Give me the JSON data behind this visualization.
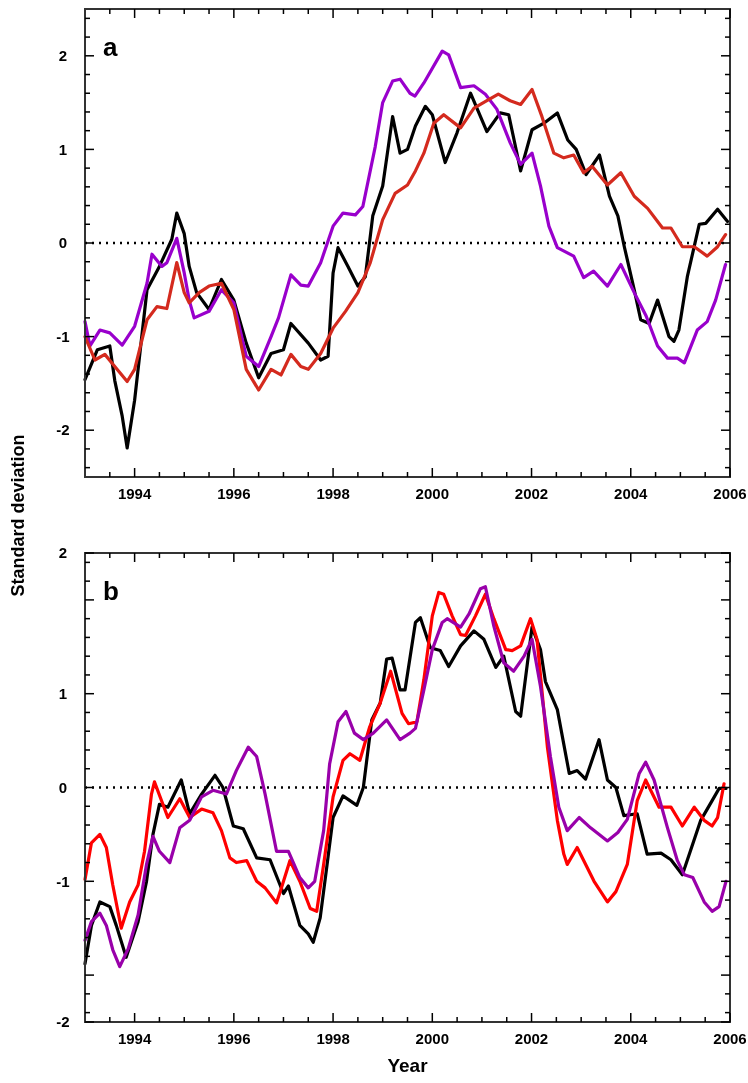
{
  "chart_data": [
    {
      "type": "line",
      "title": "a",
      "ylabel": "Standard deviation",
      "xlim": [
        1993,
        2006
      ],
      "ylim": [
        -2.5,
        2.5
      ],
      "xticks": [
        {
          "value": 1993.5,
          "label": null
        },
        1994,
        {
          "value": 1994.5,
          "label": null
        },
        {
          "value": 1995,
          "label": null
        },
        {
          "value": 1995.5,
          "label": null
        },
        1996,
        {
          "value": 1996.5,
          "label": null
        },
        {
          "value": 1997,
          "label": null
        },
        {
          "value": 1997.5,
          "label": null
        },
        1998,
        {
          "value": 1998.5,
          "label": null
        },
        {
          "value": 1999,
          "label": null
        },
        {
          "value": 1999.5,
          "label": null
        },
        2000,
        {
          "value": 2000.5,
          "label": null
        },
        {
          "value": 2001,
          "label": null
        },
        {
          "value": 2001.5,
          "label": null
        },
        2002,
        {
          "value": 2002.5,
          "label": null
        },
        {
          "value": 2003,
          "label": null
        },
        {
          "value": 2003.5,
          "label": null
        },
        2004,
        {
          "value": 2004.5,
          "label": null
        },
        {
          "value": 2005,
          "label": null
        },
        {
          "value": 2005.5,
          "label": null
        },
        2006
      ],
      "yticks": [
        -2,
        -1,
        0,
        1,
        2,
        {
          "value": -2.4,
          "label": null
        },
        {
          "value": -2.2,
          "label": null
        },
        {
          "value": -1.8,
          "label": null
        },
        {
          "value": -1.6,
          "label": null
        },
        {
          "value": -1.4,
          "label": null
        },
        {
          "value": -1.2,
          "label": null
        },
        {
          "value": -0.8,
          "label": null
        },
        {
          "value": -0.6,
          "label": null
        },
        {
          "value": -0.4,
          "label": null
        },
        {
          "value": -0.2,
          "label": null
        },
        {
          "value": 0.2,
          "label": null
        },
        {
          "value": 0.4,
          "label": null
        },
        {
          "value": 0.6,
          "label": null
        },
        {
          "value": 0.8,
          "label": null
        },
        {
          "value": 1.2,
          "label": null
        },
        {
          "value": 1.4,
          "label": null
        },
        {
          "value": 1.6,
          "label": null
        },
        {
          "value": 1.8,
          "label": null
        },
        {
          "value": 2.2,
          "label": null
        },
        {
          "value": 2.4,
          "label": null
        }
      ],
      "ref_lines": [
        {
          "axis": "y",
          "value": 0,
          "color": "#000000",
          "line_style": "dotted"
        }
      ],
      "grid": false,
      "marker": "none",
      "line_style": "solid",
      "series": [
        {
          "color": "#000000",
          "x": [
            1993,
            1993.25,
            1993.5,
            1993.6,
            1993.75,
            1993.85,
            1994,
            1994.25,
            1994.5,
            1994.75,
            1994.85,
            1995,
            1995.1,
            1995.25,
            1995.5,
            1995.75,
            1996,
            1996.25,
            1996.5,
            1996.75,
            1997,
            1997.15,
            1997.5,
            1997.75,
            1997.9,
            1998,
            1998.1,
            1998.3,
            1998.5,
            1998.65,
            1998.8,
            1999,
            1999.2,
            1999.35,
            1999.5,
            1999.66,
            1999.86,
            2000,
            2000.26,
            2000.5,
            2000.77,
            2001.1,
            2001.37,
            2001.54,
            2001.78,
            2002.01,
            2002.25,
            2002.52,
            2002.73,
            2002.9,
            2003.1,
            2003.37,
            2003.57,
            2003.74,
            2003.87,
            2004.07,
            2004.2,
            2004.37,
            2004.54,
            2004.77,
            2004.87,
            2004.97,
            2005.14,
            2005.38,
            2005.51,
            2005.75,
            2005.95
          ],
          "values": [
            -1.46,
            -1.14,
            -1.1,
            -1.47,
            -1.85,
            -2.19,
            -1.68,
            -0.5,
            -0.25,
            0.04,
            0.32,
            0.1,
            -0.25,
            -0.53,
            -0.71,
            -0.39,
            -0.61,
            -1.07,
            -1.44,
            -1.18,
            -1.14,
            -0.86,
            -1.07,
            -1.25,
            -1.21,
            -0.32,
            -0.05,
            -0.25,
            -0.46,
            -0.36,
            0.29,
            0.61,
            1.35,
            0.96,
            1.0,
            1.25,
            1.46,
            1.37,
            0.86,
            1.18,
            1.6,
            1.19,
            1.39,
            1.37,
            0.77,
            1.21,
            1.28,
            1.39,
            1.1,
            1.0,
            0.73,
            0.94,
            0.5,
            0.29,
            -0.04,
            -0.5,
            -0.82,
            -0.86,
            -0.61,
            -1.0,
            -1.05,
            -0.93,
            -0.36,
            0.2,
            0.21,
            0.36,
            0.23
          ]
        },
        {
          "color": "#9900cc",
          "x": [
            1993,
            1993.1,
            1993.3,
            1993.5,
            1993.75,
            1994,
            1994.25,
            1994.35,
            1994.55,
            1994.65,
            1994.85,
            1995,
            1995.1,
            1995.2,
            1995.5,
            1995.75,
            1996,
            1996.25,
            1996.5,
            1996.75,
            1996.9,
            1997.15,
            1997.35,
            1997.5,
            1997.75,
            1998,
            1998.2,
            1998.45,
            1998.6,
            1998.85,
            1999,
            1999.2,
            1999.35,
            1999.55,
            1999.65,
            1999.83,
            2000.2,
            2000.33,
            2000.57,
            2000.84,
            2001.07,
            2001.3,
            2001.57,
            2001.78,
            2002.01,
            2002.18,
            2002.35,
            2002.52,
            2002.85,
            2003.05,
            2003.25,
            2003.53,
            2003.8,
            2004.07,
            2004.31,
            2004.54,
            2004.74,
            2004.94,
            2005.08,
            2005.34,
            2005.54,
            2005.71,
            2005.91
          ],
          "values": [
            -0.84,
            -1.1,
            -0.93,
            -0.96,
            -1.09,
            -0.89,
            -0.43,
            -0.12,
            -0.25,
            -0.21,
            0.05,
            -0.32,
            -0.61,
            -0.8,
            -0.73,
            -0.5,
            -0.64,
            -1.21,
            -1.32,
            -1.0,
            -0.8,
            -0.34,
            -0.45,
            -0.46,
            -0.21,
            0.18,
            0.32,
            0.3,
            0.39,
            1.03,
            1.5,
            1.73,
            1.75,
            1.6,
            1.57,
            1.71,
            2.05,
            2.01,
            1.66,
            1.68,
            1.59,
            1.43,
            1.07,
            0.84,
            0.96,
            0.61,
            0.18,
            -0.05,
            -0.14,
            -0.37,
            -0.3,
            -0.46,
            -0.23,
            -0.53,
            -0.78,
            -1.1,
            -1.23,
            -1.23,
            -1.28,
            -0.93,
            -0.84,
            -0.61,
            -0.23
          ]
        },
        {
          "color": "#d42a1e",
          "x": [
            1993,
            1993.2,
            1993.4,
            1993.6,
            1993.85,
            1994,
            1994.25,
            1994.45,
            1994.65,
            1994.85,
            1995,
            1995.1,
            1995.3,
            1995.5,
            1995.75,
            1996,
            1996.25,
            1996.5,
            1996.75,
            1996.95,
            1997.15,
            1997.35,
            1997.5,
            1997.75,
            1998,
            1998.25,
            1998.5,
            1998.75,
            1999,
            1999.25,
            1999.5,
            1999.66,
            1999.83,
            2000.03,
            2000.23,
            2000.57,
            2000.84,
            2001.1,
            2001.33,
            2001.57,
            2001.78,
            2002.01,
            2002.21,
            2002.45,
            2002.65,
            2002.85,
            2003.05,
            2003.22,
            2003.53,
            2003.8,
            2004.07,
            2004.34,
            2004.64,
            2004.81,
            2005.04,
            2005.28,
            2005.54,
            2005.75,
            2005.91
          ],
          "values": [
            -1.0,
            -1.25,
            -1.19,
            -1.32,
            -1.48,
            -1.35,
            -0.82,
            -0.68,
            -0.7,
            -0.21,
            -0.53,
            -0.64,
            -0.53,
            -0.46,
            -0.43,
            -0.71,
            -1.35,
            -1.57,
            -1.35,
            -1.41,
            -1.19,
            -1.32,
            -1.35,
            -1.18,
            -0.91,
            -0.73,
            -0.53,
            -0.21,
            0.25,
            0.53,
            0.62,
            0.77,
            0.96,
            1.28,
            1.37,
            1.23,
            1.44,
            1.52,
            1.59,
            1.52,
            1.48,
            1.64,
            1.35,
            0.96,
            0.91,
            0.94,
            0.75,
            0.82,
            0.62,
            0.75,
            0.5,
            0.37,
            0.16,
            0.16,
            -0.04,
            -0.04,
            -0.14,
            -0.04,
            0.09
          ]
        }
      ]
    },
    {
      "type": "line",
      "title": "b",
      "xlabel": "Year",
      "xlim": [
        1993,
        2006
      ],
      "ylim": [
        -2.5,
        2.5
      ],
      "xticks": [
        {
          "value": 1993.5,
          "label": null
        },
        1994,
        {
          "value": 1994.5,
          "label": null
        },
        {
          "value": 1995,
          "label": null
        },
        {
          "value": 1995.5,
          "label": null
        },
        1996,
        {
          "value": 1996.5,
          "label": null
        },
        {
          "value": 1997,
          "label": null
        },
        {
          "value": 1997.5,
          "label": null
        },
        1998,
        {
          "value": 1998.5,
          "label": null
        },
        {
          "value": 1999,
          "label": null
        },
        {
          "value": 1999.5,
          "label": null
        },
        2000,
        {
          "value": 2000.5,
          "label": null
        },
        {
          "value": 2001,
          "label": null
        },
        {
          "value": 2001.5,
          "label": null
        },
        2002,
        {
          "value": 2002.5,
          "label": null
        },
        {
          "value": 2003,
          "label": null
        },
        {
          "value": 2003.5,
          "label": null
        },
        2004,
        {
          "value": 2004.5,
          "label": null
        },
        {
          "value": 2005,
          "label": null
        },
        {
          "value": 2005.5,
          "label": null
        },
        2006
      ],
      "yticks": [
        {
          "value": -2.5,
          "label": "-2"
        },
        -1,
        0,
        1,
        {
          "value": 2.5,
          "label": "2"
        },
        {
          "value": -2,
          "label": null
        },
        {
          "value": 2,
          "label": null
        },
        {
          "value": -2.4,
          "label": null
        },
        {
          "value": -2.2,
          "label": null
        },
        {
          "value": -1.8,
          "label": null
        },
        {
          "value": -1.6,
          "label": null
        },
        {
          "value": -1.4,
          "label": null
        },
        {
          "value": -1.2,
          "label": null
        },
        {
          "value": -0.8,
          "label": null
        },
        {
          "value": -0.6,
          "label": null
        },
        {
          "value": -0.4,
          "label": null
        },
        {
          "value": -0.2,
          "label": null
        },
        {
          "value": 0.2,
          "label": null
        },
        {
          "value": 0.4,
          "label": null
        },
        {
          "value": 0.6,
          "label": null
        },
        {
          "value": 0.8,
          "label": null
        },
        {
          "value": 1.2,
          "label": null
        },
        {
          "value": 1.4,
          "label": null
        },
        {
          "value": 1.6,
          "label": null
        },
        {
          "value": 1.8,
          "label": null
        },
        {
          "value": 2.2,
          "label": null
        },
        {
          "value": 2.4,
          "label": null
        }
      ],
      "ref_lines": [
        {
          "axis": "y",
          "value": 0,
          "color": "#000000",
          "line_style": "dotted"
        }
      ],
      "grid": false,
      "marker": "none",
      "line_style": "solid",
      "series": [
        {
          "color": "#000000",
          "x": [
            1993,
            1993.13,
            1993.3,
            1993.5,
            1993.63,
            1993.83,
            1994.07,
            1994.24,
            1994.37,
            1994.5,
            1994.67,
            1994.94,
            1995.11,
            1995.35,
            1995.62,
            1995.78,
            1995.99,
            1996.19,
            1996.46,
            1996.73,
            1997,
            1997.1,
            1997.33,
            1997.5,
            1997.6,
            1997.74,
            1997.87,
            1998,
            1998.2,
            1998.48,
            1998.61,
            1998.78,
            1998.95,
            1999.08,
            1999.19,
            1999.35,
            1999.45,
            1999.66,
            1999.76,
            1999.96,
            2000.16,
            2000.33,
            2000.57,
            2000.84,
            2001.04,
            2001.28,
            2001.44,
            2001.68,
            2001.78,
            2002.01,
            2002.18,
            2002.28,
            2002.52,
            2002.76,
            2002.92,
            2003.09,
            2003.36,
            2003.53,
            2003.7,
            2003.86,
            2004.13,
            2004.33,
            2004.61,
            2004.81,
            2005.04,
            2005.2,
            2005.41,
            2005.64,
            2005.78,
            2005.92
          ],
          "values": [
            -1.88,
            -1.47,
            -1.22,
            -1.27,
            -1.47,
            -1.81,
            -1.43,
            -1.0,
            -0.5,
            -0.18,
            -0.21,
            0.08,
            -0.28,
            -0.07,
            0.13,
            0.0,
            -0.41,
            -0.44,
            -0.75,
            -0.77,
            -1.13,
            -1.05,
            -1.47,
            -1.56,
            -1.65,
            -1.39,
            -0.86,
            -0.32,
            -0.09,
            -0.19,
            0.0,
            0.72,
            0.9,
            1.37,
            1.38,
            1.04,
            1.04,
            1.76,
            1.81,
            1.49,
            1.46,
            1.29,
            1.51,
            1.67,
            1.58,
            1.28,
            1.4,
            0.81,
            0.76,
            1.71,
            1.47,
            1.13,
            0.83,
            0.15,
            0.18,
            0.09,
            0.51,
            0.08,
            0.0,
            -0.3,
            -0.28,
            -0.71,
            -0.7,
            -0.77,
            -0.93,
            -0.68,
            -0.35,
            -0.14,
            -0.01,
            -0.01
          ]
        },
        {
          "color": "#ff0000",
          "x": [
            1993,
            1993.13,
            1993.3,
            1993.43,
            1993.56,
            1993.73,
            1993.9,
            1994.07,
            1994.2,
            1994.34,
            1994.4,
            1994.67,
            1994.91,
            1995.11,
            1995.35,
            1995.58,
            1995.75,
            1995.92,
            1996.05,
            1996.26,
            1996.46,
            1996.63,
            1996.86,
            1996.96,
            1997.13,
            1997.33,
            1997.54,
            1997.67,
            1997.81,
            1998,
            1998.2,
            1998.34,
            1998.54,
            1998.74,
            1998.95,
            1999.16,
            1999.39,
            1999.52,
            1999.69,
            1999.83,
            2000,
            2000.13,
            2000.23,
            2000.4,
            2000.57,
            2000.67,
            2000.87,
            2001.07,
            2001.24,
            2001.48,
            2001.61,
            2001.78,
            2001.98,
            2002.11,
            2002.32,
            2002.52,
            2002.65,
            2002.72,
            2002.92,
            2003.26,
            2003.53,
            2003.7,
            2003.93,
            2004.13,
            2004.3,
            2004.57,
            2004.81,
            2005.04,
            2005.28,
            2005.48,
            2005.64,
            2005.75,
            2005.88
          ],
          "values": [
            -0.98,
            -0.59,
            -0.5,
            -0.64,
            -1.04,
            -1.5,
            -1.22,
            -1.04,
            -0.68,
            -0.07,
            0.06,
            -0.32,
            -0.12,
            -0.32,
            -0.23,
            -0.27,
            -0.46,
            -0.75,
            -0.8,
            -0.78,
            -1.0,
            -1.07,
            -1.23,
            -1.07,
            -0.78,
            -1.0,
            -1.29,
            -1.32,
            -0.82,
            -0.1,
            0.29,
            0.36,
            0.29,
            0.65,
            0.9,
            1.24,
            0.79,
            0.68,
            0.7,
            1.15,
            1.83,
            2.08,
            2.06,
            1.83,
            1.63,
            1.62,
            1.83,
            2.06,
            1.8,
            1.47,
            1.46,
            1.51,
            1.8,
            1.58,
            0.43,
            -0.35,
            -0.71,
            -0.82,
            -0.64,
            -1.0,
            -1.22,
            -1.11,
            -0.82,
            -0.14,
            0.08,
            -0.21,
            -0.21,
            -0.41,
            -0.21,
            -0.35,
            -0.41,
            -0.32,
            0.04
          ]
        },
        {
          "color": "#9900aa",
          "x": [
            1993,
            1993.13,
            1993.3,
            1993.43,
            1993.56,
            1993.7,
            1993.87,
            1994.07,
            1994.24,
            1994.37,
            1994.5,
            1994.71,
            1994.91,
            1995.11,
            1995.35,
            1995.58,
            1995.85,
            1996.05,
            1996.29,
            1996.46,
            1996.63,
            1996.86,
            1997.1,
            1997.33,
            1997.5,
            1997.63,
            1997.81,
            1997.93,
            1998.1,
            1998.26,
            1998.43,
            1998.61,
            1998.81,
            1999.08,
            1999.35,
            1999.55,
            1999.66,
            1999.83,
            2000,
            2000.2,
            2000.3,
            2000.57,
            2000.74,
            2000.97,
            2001.07,
            2001.24,
            2001.44,
            2001.64,
            2001.85,
            2002.01,
            2002.18,
            2002.38,
            2002.55,
            2002.72,
            2002.96,
            2003.19,
            2003.53,
            2003.74,
            2003.93,
            2004.17,
            2004.3,
            2004.47,
            2004.74,
            2004.94,
            2005.08,
            2005.25,
            2005.48,
            2005.64,
            2005.78,
            2005.92
          ],
          "values": [
            -1.63,
            -1.43,
            -1.34,
            -1.47,
            -1.73,
            -1.91,
            -1.72,
            -1.36,
            -0.82,
            -0.52,
            -0.68,
            -0.8,
            -0.43,
            -0.35,
            -0.1,
            -0.03,
            -0.07,
            0.18,
            0.43,
            0.33,
            -0.07,
            -0.68,
            -0.68,
            -0.96,
            -1.07,
            -1.0,
            -0.46,
            0.25,
            0.7,
            0.81,
            0.58,
            0.51,
            0.58,
            0.72,
            0.51,
            0.58,
            0.63,
            1.04,
            1.47,
            1.76,
            1.8,
            1.71,
            1.85,
            2.12,
            2.14,
            1.72,
            1.33,
            1.24,
            1.4,
            1.58,
            1.08,
            0.33,
            -0.21,
            -0.46,
            -0.32,
            -0.43,
            -0.57,
            -0.48,
            -0.34,
            0.15,
            0.27,
            0.08,
            -0.43,
            -0.78,
            -0.93,
            -0.96,
            -1.22,
            -1.32,
            -1.27,
            -1.0
          ]
        }
      ]
    }
  ]
}
